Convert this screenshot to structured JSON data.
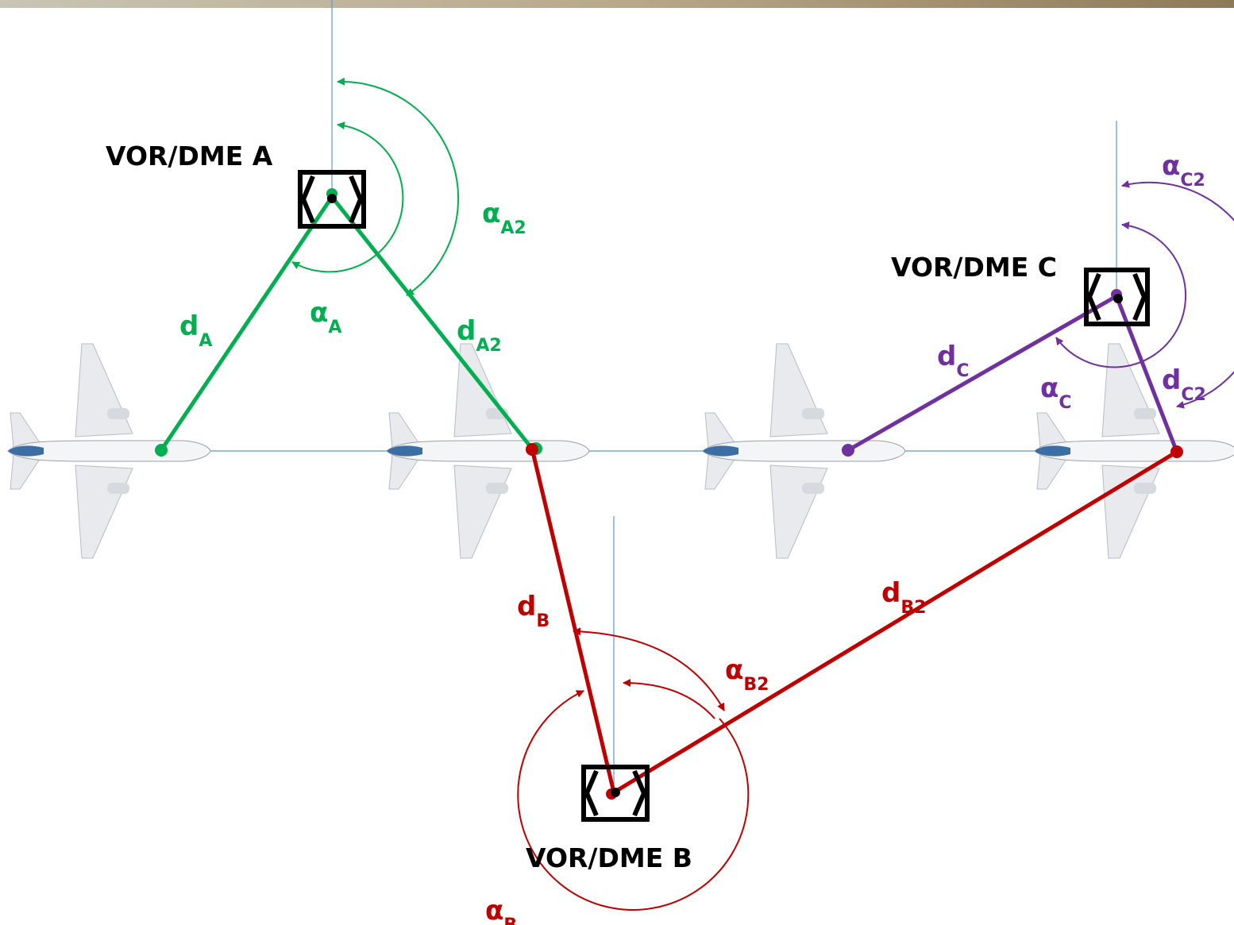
{
  "stations": [
    {
      "label": "VOR/DME A"
    },
    {
      "label": "VOR/DME B"
    },
    {
      "label": "VOR/DME C"
    }
  ],
  "labels": [
    {
      "main": "d",
      "sub": "A"
    },
    {
      "main": "α",
      "sub": "A"
    },
    {
      "main": "d",
      "sub": "A2"
    },
    {
      "main": "α",
      "sub": "A2"
    },
    {
      "main": "d",
      "sub": "B"
    },
    {
      "main": "α",
      "sub": "B"
    },
    {
      "main": "d",
      "sub": "B2"
    },
    {
      "main": "α",
      "sub": "B2"
    },
    {
      "main": "d",
      "sub": "C"
    },
    {
      "main": "α",
      "sub": "C"
    },
    {
      "main": "d",
      "sub": "C2"
    },
    {
      "main": "α",
      "sub": "C2"
    }
  ]
}
